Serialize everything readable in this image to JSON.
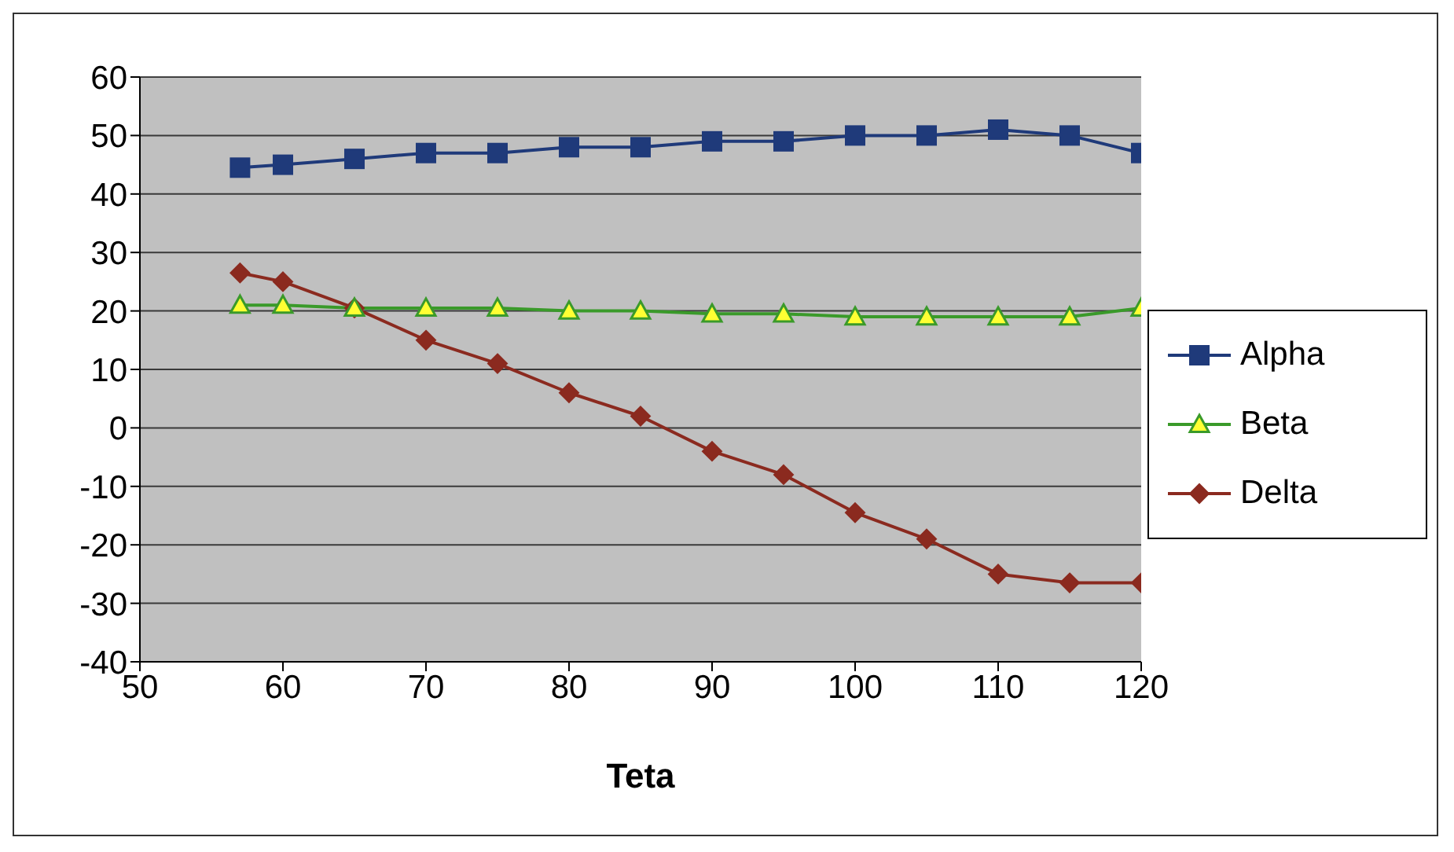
{
  "chart_data": {
    "type": "line",
    "xlabel": "Teta",
    "x": [
      57,
      60,
      65,
      70,
      75,
      80,
      85,
      90,
      95,
      100,
      105,
      110,
      115,
      120
    ],
    "xlim": [
      50,
      120
    ],
    "xticks": [
      50,
      60,
      70,
      80,
      90,
      100,
      110,
      120
    ],
    "ylim": [
      -40,
      60
    ],
    "yticks": [
      -40,
      -30,
      -20,
      -10,
      0,
      10,
      20,
      30,
      40,
      50,
      60
    ],
    "grid": "y",
    "legend": "right",
    "line_style": "solid",
    "series": [
      {
        "name": "Alpha",
        "color": "#1f3a7a",
        "marker": "square",
        "values": [
          44.5,
          45,
          46,
          47,
          47,
          48,
          48,
          49,
          49,
          50,
          50,
          51,
          50,
          47
        ]
      },
      {
        "name": "Beta",
        "color": "#3a9a2a",
        "marker": "triangle",
        "values": [
          21,
          21,
          20.5,
          20.5,
          20.5,
          20,
          20,
          19.5,
          19.5,
          19,
          19,
          19,
          19,
          20.5
        ]
      },
      {
        "name": "Delta",
        "color": "#8b2a1f",
        "marker": "diamond",
        "values": [
          26.5,
          25,
          20.5,
          15,
          11,
          6,
          2,
          -4,
          -8,
          -14.5,
          -19,
          -25,
          -26.5,
          -26.5
        ]
      }
    ]
  }
}
